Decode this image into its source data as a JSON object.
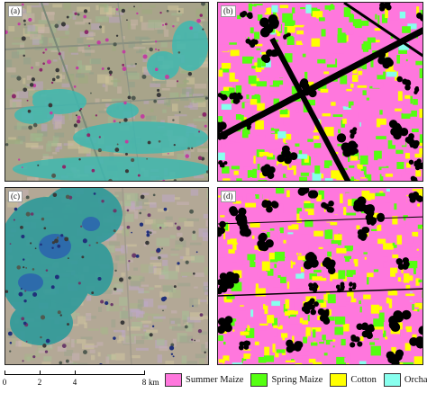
{
  "panels": {
    "a": {
      "label": "(a)"
    },
    "b": {
      "label": "(b)"
    },
    "c": {
      "label": "(c)"
    },
    "d": {
      "label": "(d)"
    }
  },
  "scale_bar": {
    "ticks": [
      "0",
      "2",
      "4",
      "8"
    ],
    "unit": "km"
  },
  "legend": [
    {
      "label": "Summer Maize",
      "color": "#ff77dd"
    },
    {
      "label": "Spring Maize",
      "color": "#55ff11"
    },
    {
      "label": "Cotton",
      "color": "#ffff00"
    },
    {
      "label": "Orchard",
      "color": "#88ffee"
    }
  ]
}
